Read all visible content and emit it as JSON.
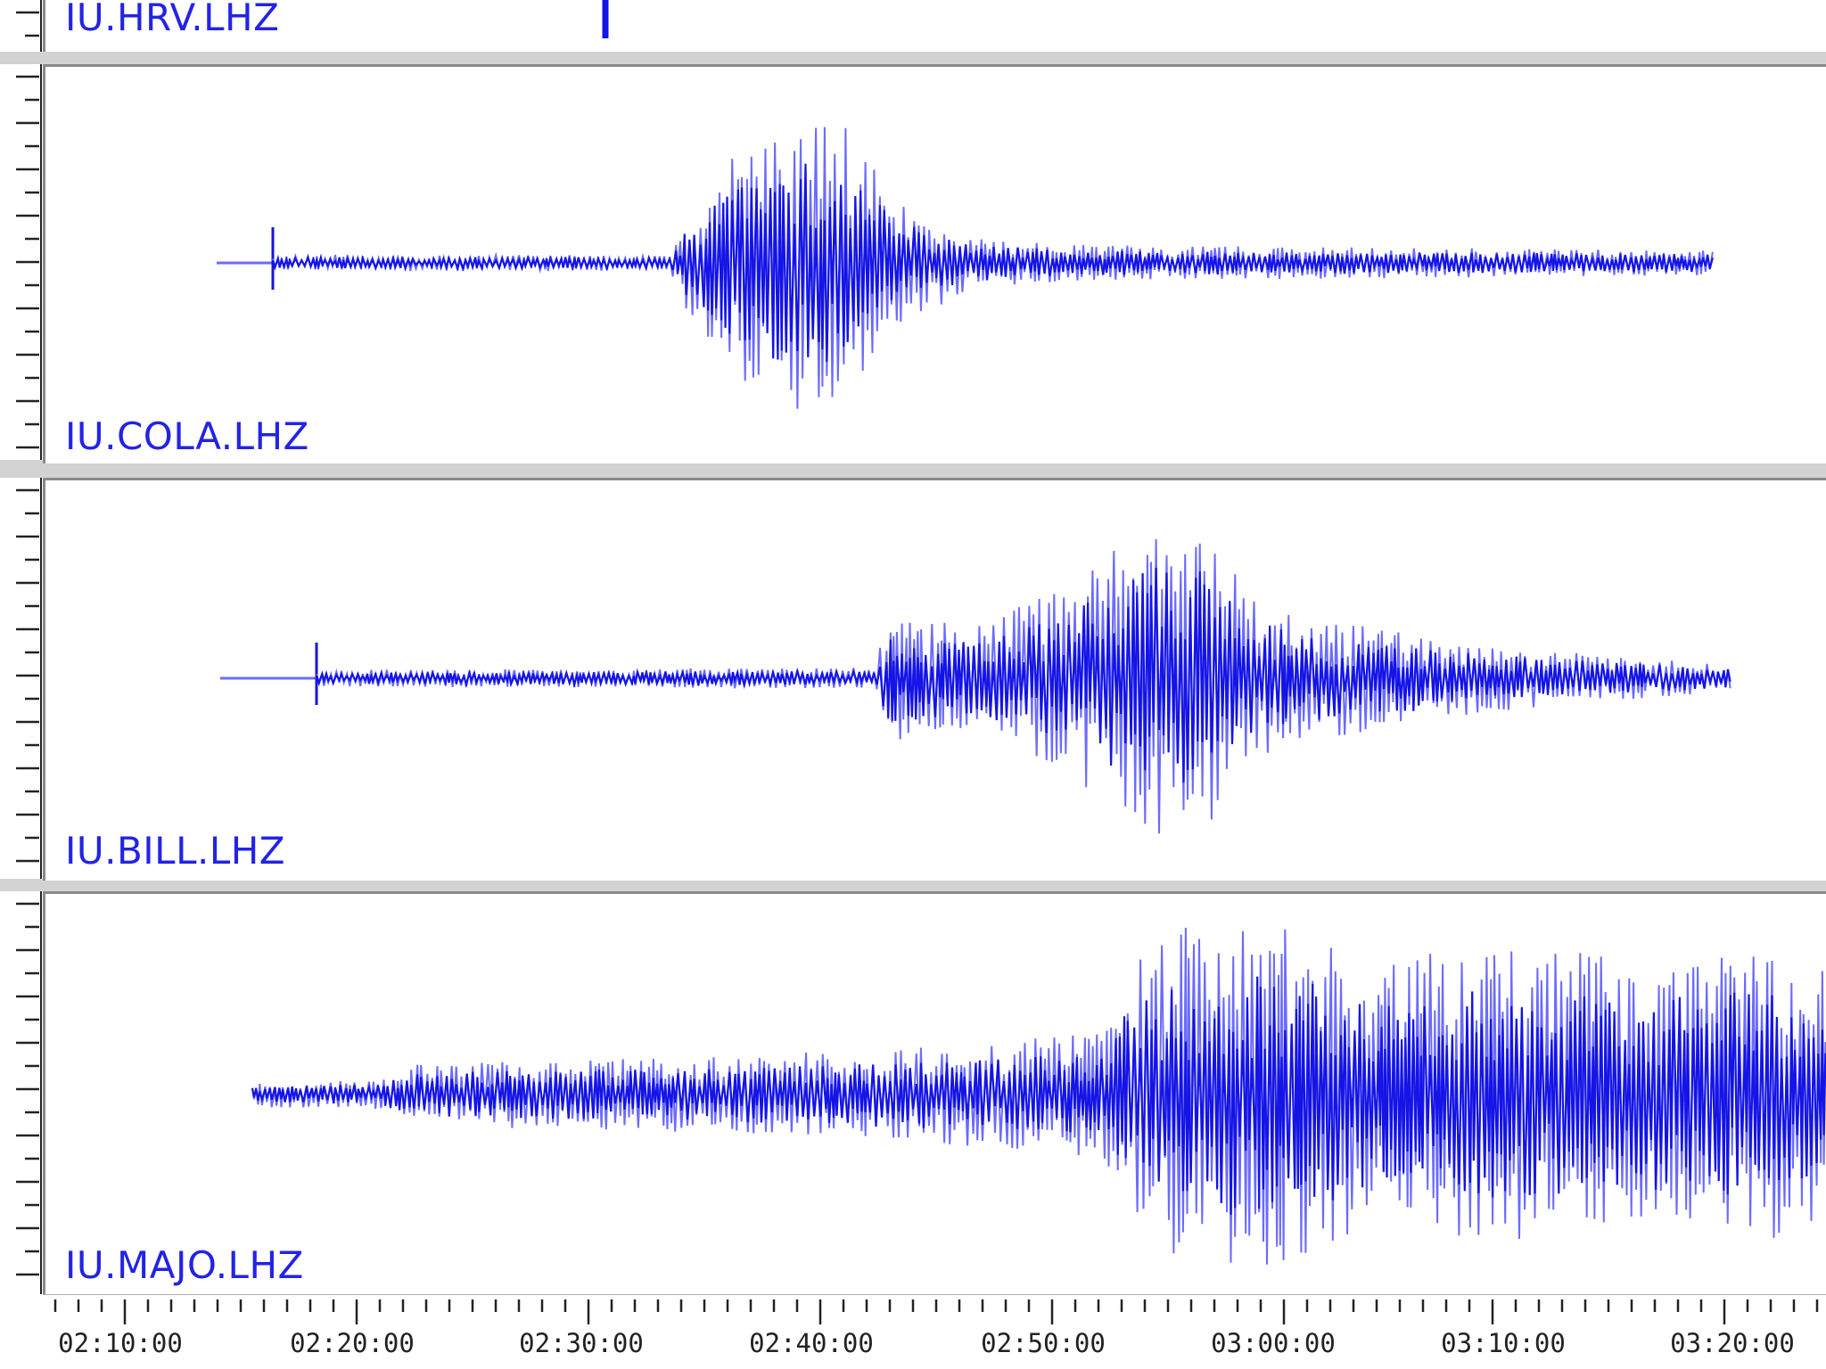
{
  "viewer": {
    "trace_color": "#1414e6",
    "trace_light_color": "#6b6bff",
    "label_color": "#2323e6",
    "panels": [
      {
        "station": "IU.HRV.LHZ"
      },
      {
        "station": "IU.COLA.LHZ"
      },
      {
        "station": "IU.BILL.LHZ"
      },
      {
        "station": "IU.MAJO.LHZ"
      }
    ]
  },
  "time_axis": {
    "labels": [
      "02:10:00",
      "02:20:00",
      "02:30:00",
      "02:40:00",
      "02:50:00",
      "03:00:00",
      "03:10:00",
      "03:20:00"
    ]
  }
}
